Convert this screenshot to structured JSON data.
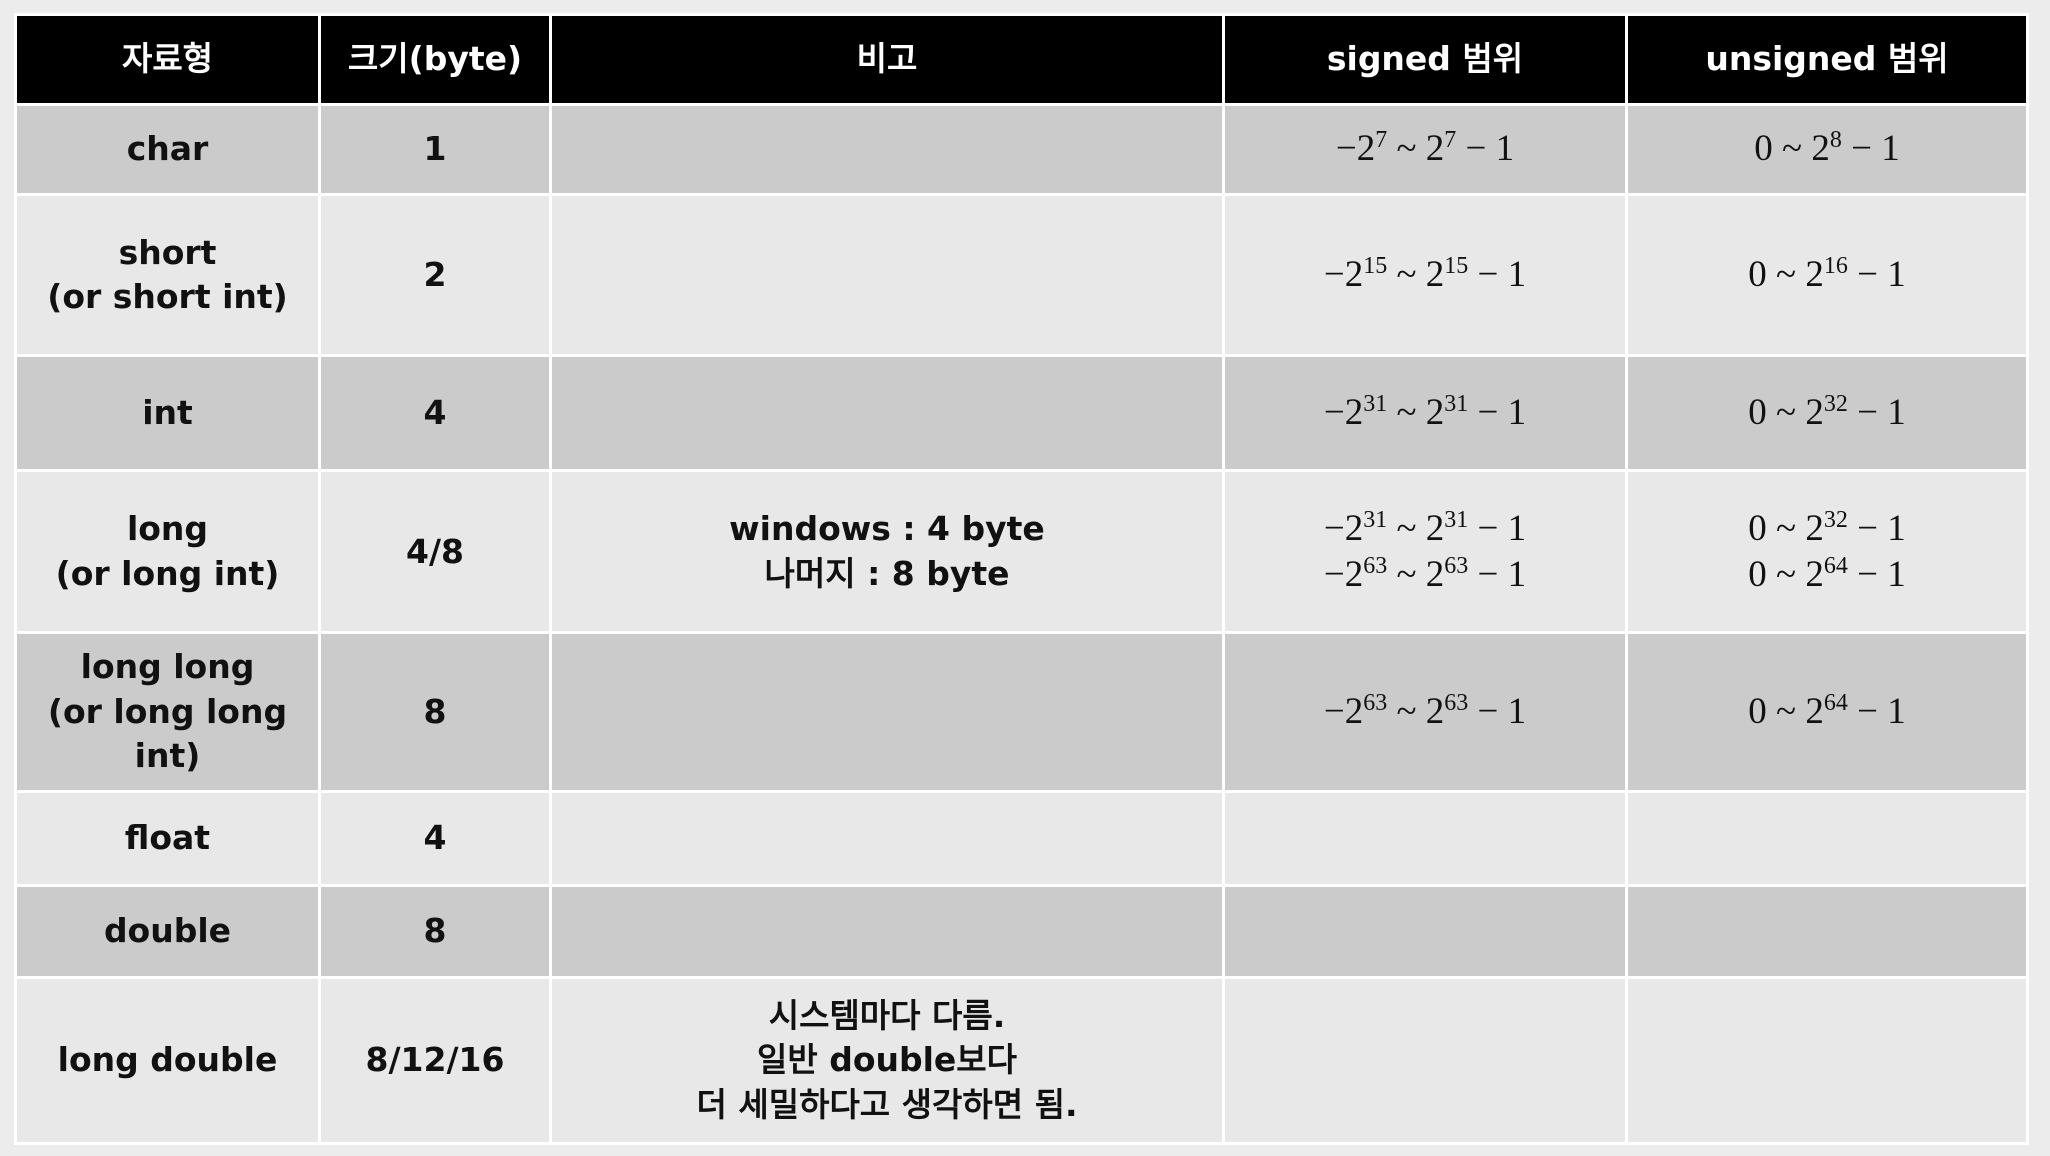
{
  "headers": [
    "자료형",
    "크기(byte)",
    "비고",
    "signed 범위",
    "unsigned 범위"
  ],
  "colors": {
    "header_bg": "#000000",
    "row_dark": "#cbcbcb",
    "row_light": "#e8e8e8"
  },
  "rows": [
    {
      "type": [
        "char"
      ],
      "size": "1",
      "note": [],
      "signed": [
        {
          "lo": "−2",
          "lo_exp": "7",
          "hi": "2",
          "hi_exp": "7",
          "tail": "− 1"
        }
      ],
      "unsigned": [
        {
          "lo": "0",
          "lo_exp": "",
          "hi": "2",
          "hi_exp": "8",
          "tail": "− 1"
        }
      ]
    },
    {
      "type": [
        "short",
        "(or short int)"
      ],
      "size": "2",
      "note": [],
      "signed": [
        {
          "lo": "−2",
          "lo_exp": "15",
          "hi": "2",
          "hi_exp": "15",
          "tail": "− 1"
        }
      ],
      "unsigned": [
        {
          "lo": "0",
          "lo_exp": "",
          "hi": "2",
          "hi_exp": "16",
          "tail": "− 1"
        }
      ]
    },
    {
      "type": [
        "int"
      ],
      "size": "4",
      "note": [],
      "signed": [
        {
          "lo": "−2",
          "lo_exp": "31",
          "hi": "2",
          "hi_exp": "31",
          "tail": "− 1"
        }
      ],
      "unsigned": [
        {
          "lo": "0",
          "lo_exp": "",
          "hi": "2",
          "hi_exp": "32",
          "tail": "− 1"
        }
      ]
    },
    {
      "type": [
        "long",
        "(or long int)"
      ],
      "size": "4/8",
      "note": [
        "windows : 4 byte",
        "나머지 : 8 byte"
      ],
      "signed": [
        {
          "lo": "−2",
          "lo_exp": "31",
          "hi": "2",
          "hi_exp": "31",
          "tail": "− 1"
        },
        {
          "lo": "−2",
          "lo_exp": "63",
          "hi": "2",
          "hi_exp": "63",
          "tail": "− 1"
        }
      ],
      "unsigned": [
        {
          "lo": "0",
          "lo_exp": "",
          "hi": "2",
          "hi_exp": "32",
          "tail": "− 1"
        },
        {
          "lo": "0",
          "lo_exp": "",
          "hi": "2",
          "hi_exp": "64",
          "tail": "− 1"
        }
      ]
    },
    {
      "type": [
        "long long",
        "(or long long int)"
      ],
      "size": "8",
      "note": [],
      "signed": [
        {
          "lo": "−2",
          "lo_exp": "63",
          "hi": "2",
          "hi_exp": "63",
          "tail": "− 1"
        }
      ],
      "unsigned": [
        {
          "lo": "0",
          "lo_exp": "",
          "hi": "2",
          "hi_exp": "64",
          "tail": "− 1"
        }
      ]
    },
    {
      "type": [
        "float"
      ],
      "size": "4",
      "note": [],
      "signed": [],
      "unsigned": []
    },
    {
      "type": [
        "double"
      ],
      "size": "8",
      "note": [],
      "signed": [],
      "unsigned": []
    },
    {
      "type": [
        "long double"
      ],
      "size": "8/12/16",
      "note": [
        "시스템마다 다름.",
        "일반 double보다",
        "더 세밀하다고 생각하면 됨."
      ],
      "signed": [],
      "unsigned": []
    }
  ]
}
